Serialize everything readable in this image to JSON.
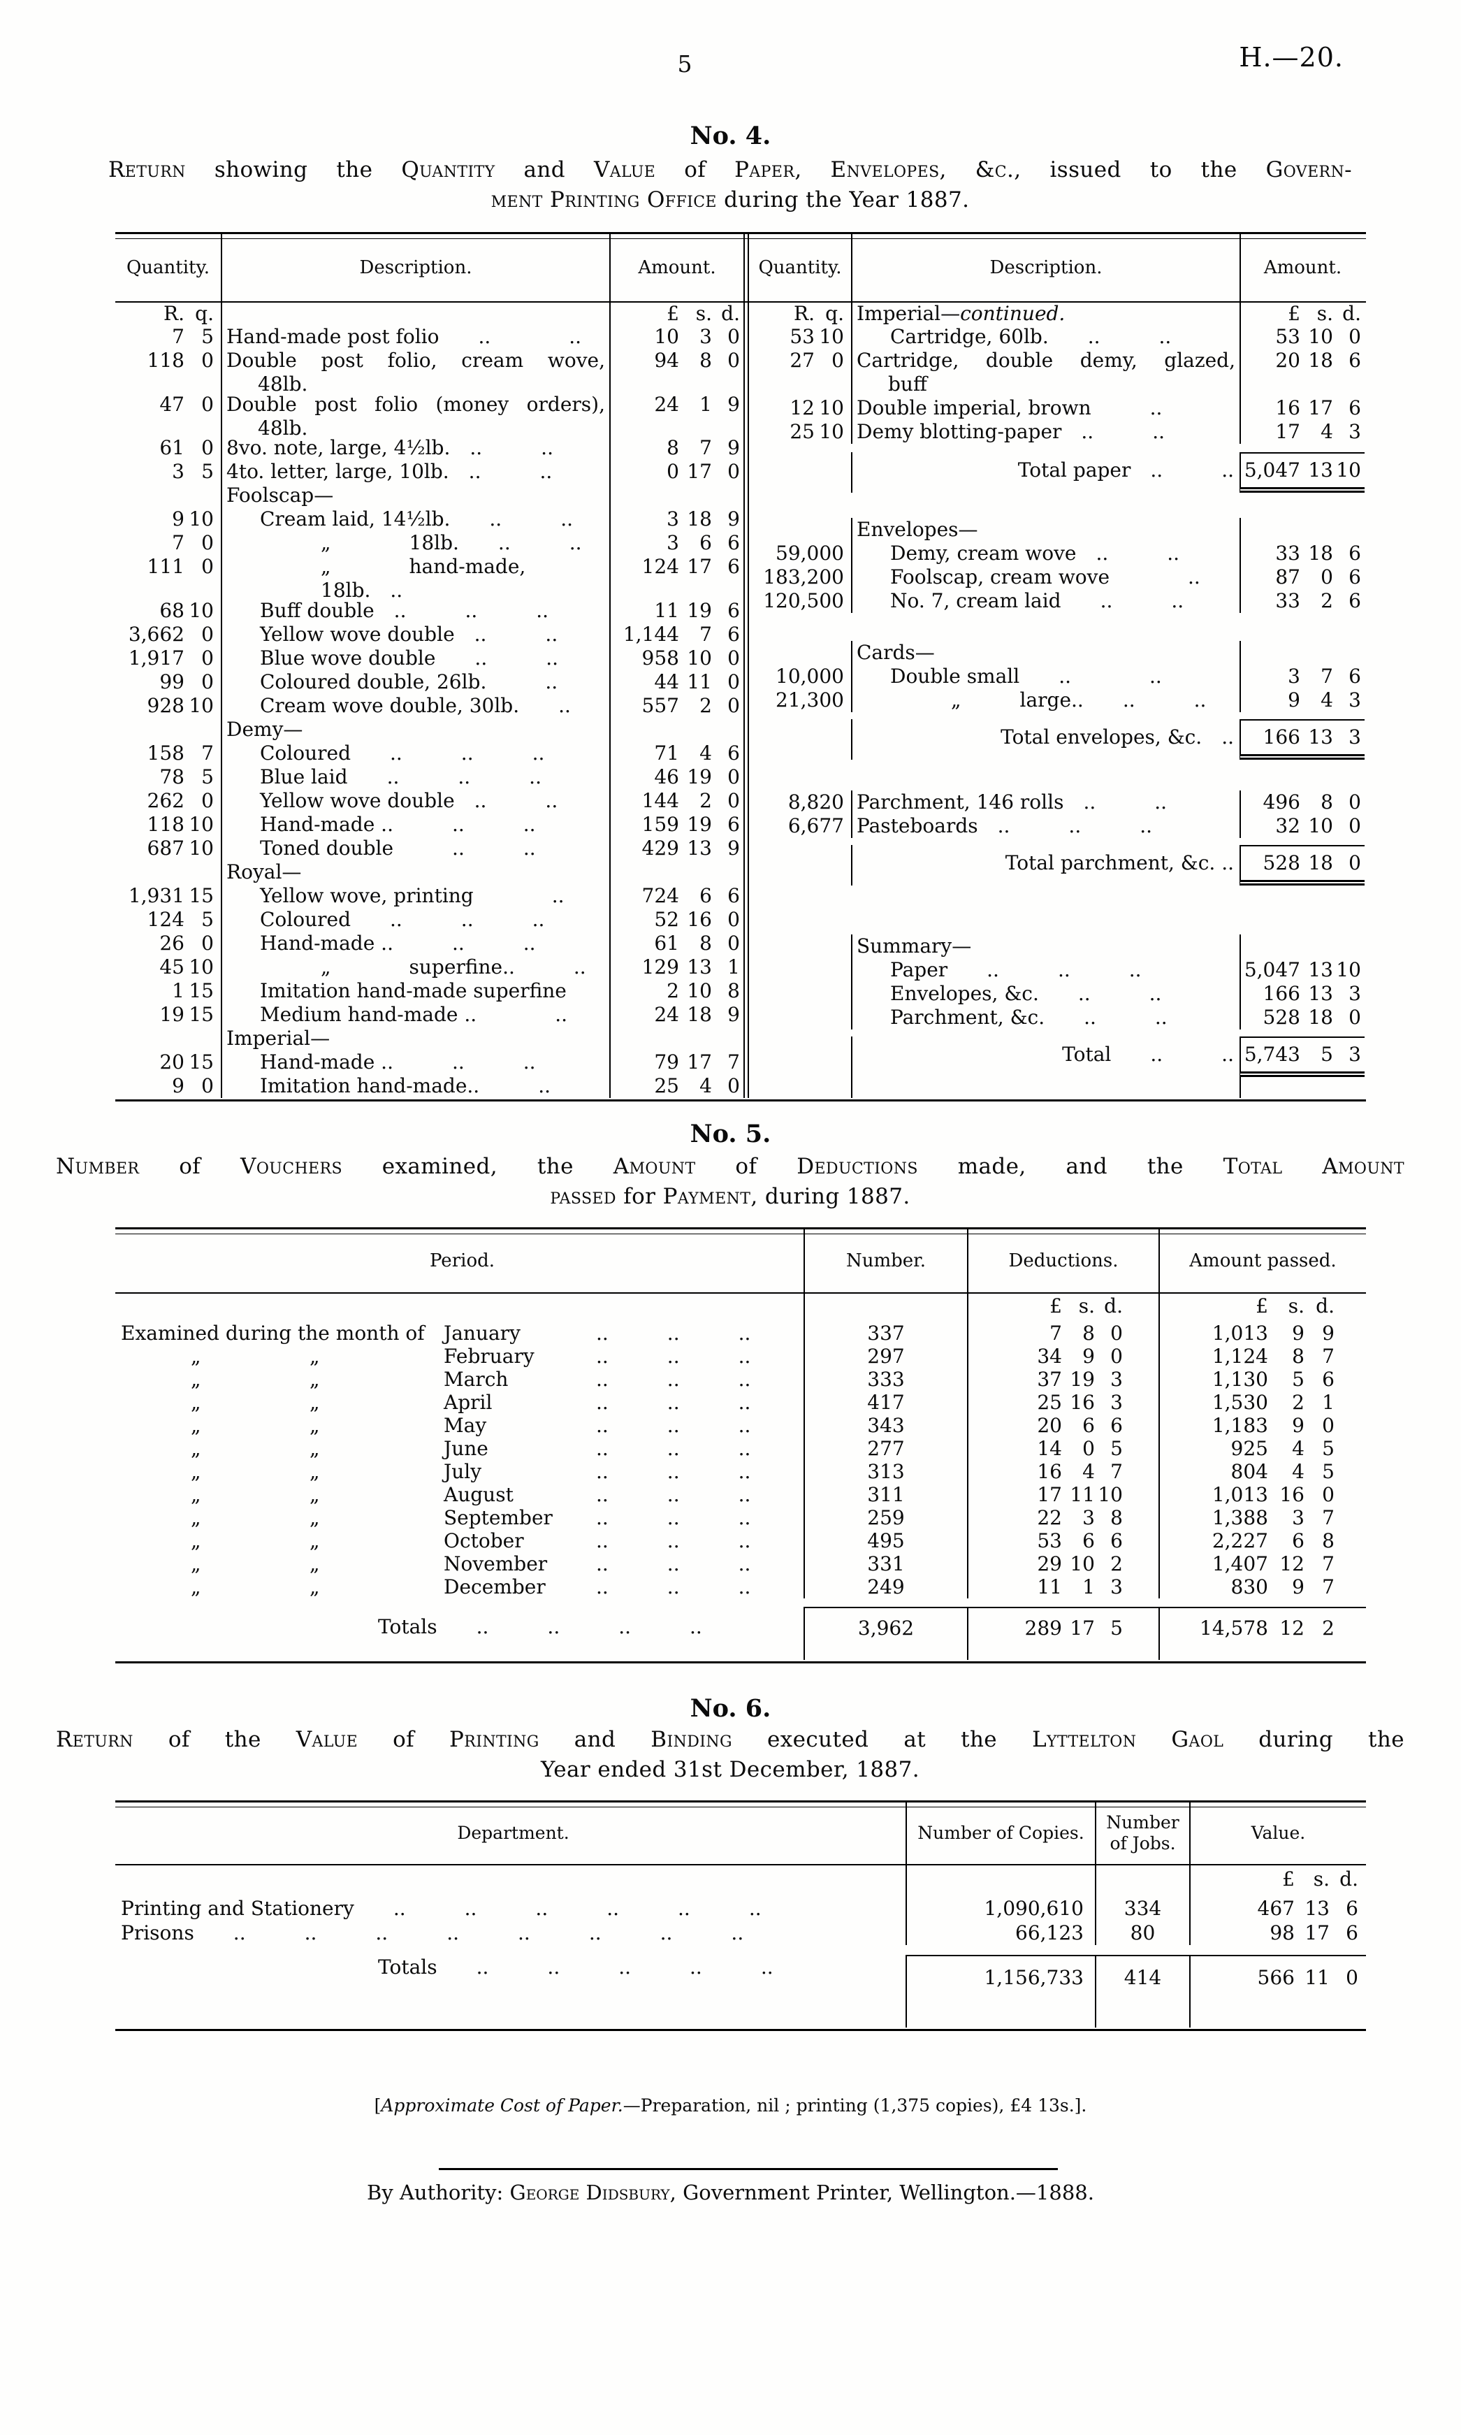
{
  "page": {
    "page_number": "5",
    "reference": "H.—20."
  },
  "no4": {
    "heading": "No. 4.",
    "title": [
      [
        {
          "t": "Return",
          "sc": true
        },
        {
          "t": " showing the "
        },
        {
          "t": "Quantity",
          "sc": true
        },
        {
          "t": " and "
        },
        {
          "t": "Value",
          "sc": true
        },
        {
          "t": " of "
        },
        {
          "t": "Paper, Envelopes, &c.,",
          "sc": true
        },
        {
          "t": " issued to the "
        },
        {
          "t": "Govern-",
          "sc": true
        }
      ],
      [
        {
          "t": "ment Printing Office",
          "sc": true
        },
        {
          "t": " during the Year 1887."
        }
      ]
    ],
    "columns": {
      "quantity": "Quantity.",
      "description": "Description.",
      "amount": "Amount."
    },
    "left": {
      "units": {
        "q": [
          "R.",
          "q."
        ],
        "a": [
          "£",
          "s.",
          "d."
        ]
      },
      "rows": [
        {
          "type": "units"
        },
        {
          "r": "7",
          "q": "5",
          "desc": "Hand-made post folio  ..    ..",
          "amt": [
            "10",
            "3",
            "0"
          ]
        },
        {
          "r": "118",
          "q": "0",
          "desc": "Double post folio, cream wove,",
          "d2": "48lb.",
          "amt": [
            "94",
            "8",
            "0"
          ]
        },
        {
          "r": "47",
          "q": "0",
          "desc": "Double post folio (money orders),",
          "d2": "48lb.",
          "amt": [
            "24",
            "1",
            "9"
          ]
        },
        {
          "r": "61",
          "q": "0",
          "desc": "8vo. note, large, 4½lb. ..   ..",
          "amt": [
            "8",
            "7",
            "9"
          ]
        },
        {
          "r": "3",
          "q": "5",
          "desc": "4to. letter, large, 10lb. ..   ..",
          "amt": [
            "0",
            "17",
            "0"
          ]
        },
        {
          "type": "section",
          "text": "Foolscap—"
        },
        {
          "r": "9",
          "q": "10",
          "ind": 1,
          "desc": "Cream laid, 14½lb.  ..   ..",
          "amt": [
            "3",
            "18",
            "9"
          ]
        },
        {
          "r": "7",
          "q": "0",
          "ind": 2,
          "desc": "„    18lb.  ..   ..",
          "amt": [
            "3",
            "6",
            "6"
          ]
        },
        {
          "r": "111",
          "q": "0",
          "ind": 2,
          "desc": "„    hand-made, 18lb. ..",
          "amt": [
            "124",
            "17",
            "6"
          ]
        },
        {
          "r": "68",
          "q": "10",
          "ind": 1,
          "desc": "Buff double ..   ..   ..",
          "amt": [
            "11",
            "19",
            "6"
          ]
        },
        {
          "r": "3,662",
          "q": "0",
          "ind": 1,
          "desc": "Yellow wove double ..   ..",
          "amt": [
            "1,144",
            "7",
            "6"
          ]
        },
        {
          "r": "1,917",
          "q": "0",
          "ind": 1,
          "desc": "Blue wove double  ..   ..",
          "amt": [
            "958",
            "10",
            "0"
          ]
        },
        {
          "r": "99",
          "q": "0",
          "ind": 1,
          "desc": "Coloured double, 26lb.   ..",
          "amt": [
            "44",
            "11",
            "0"
          ]
        },
        {
          "r": "928",
          "q": "10",
          "ind": 1,
          "desc": "Cream wove double, 30lb.  ..",
          "amt": [
            "557",
            "2",
            "0"
          ]
        },
        {
          "type": "section",
          "text": "Demy—"
        },
        {
          "r": "158",
          "q": "7",
          "ind": 1,
          "desc": "Coloured  ..   ..   ..",
          "amt": [
            "71",
            "4",
            "6"
          ]
        },
        {
          "r": "78",
          "q": "5",
          "ind": 1,
          "desc": "Blue laid  ..   ..   ..",
          "amt": [
            "46",
            "19",
            "0"
          ]
        },
        {
          "r": "262",
          "q": "0",
          "ind": 1,
          "desc": "Yellow wove double ..   ..",
          "amt": [
            "144",
            "2",
            "0"
          ]
        },
        {
          "r": "118",
          "q": "10",
          "ind": 1,
          "desc": "Hand-made ..   ..   ..",
          "amt": [
            "159",
            "19",
            "6"
          ]
        },
        {
          "r": "687",
          "q": "10",
          "ind": 1,
          "desc": "Toned double   ..   ..",
          "amt": [
            "429",
            "13",
            "9"
          ]
        },
        {
          "type": "section",
          "text": "Royal—"
        },
        {
          "r": "1,931",
          "q": "15",
          "ind": 1,
          "desc": "Yellow wove, printing    ..",
          "amt": [
            "724",
            "6",
            "6"
          ]
        },
        {
          "r": "124",
          "q": "5",
          "ind": 1,
          "desc": "Coloured  ..   ..   ..",
          "amt": [
            "52",
            "16",
            "0"
          ]
        },
        {
          "r": "26",
          "q": "0",
          "ind": 1,
          "desc": "Hand-made ..   ..   ..",
          "amt": [
            "61",
            "8",
            "0"
          ]
        },
        {
          "r": "45",
          "q": "10",
          "ind": 2,
          "desc": "„    superfine..   ..",
          "amt": [
            "129",
            "13",
            "1"
          ]
        },
        {
          "r": "1",
          "q": "15",
          "ind": 1,
          "desc": "Imitation hand-made superfine",
          "amt": [
            "2",
            "10",
            "8"
          ]
        },
        {
          "r": "19",
          "q": "15",
          "ind": 1,
          "desc": "Medium hand-made ..    ..",
          "amt": [
            "24",
            "18",
            "9"
          ]
        },
        {
          "type": "section",
          "text": "Imperial—"
        },
        {
          "r": "20",
          "q": "15",
          "ind": 1,
          "desc": "Hand-made ..   ..   ..",
          "amt": [
            "79",
            "17",
            "7"
          ]
        },
        {
          "r": "9",
          "q": "0",
          "ind": 1,
          "desc": "Imitation hand-made..   ..",
          "amt": [
            "25",
            "4",
            "0"
          ]
        }
      ]
    },
    "right": {
      "units": {
        "q": [
          "R.",
          "q."
        ],
        "a": [
          "£",
          "s.",
          "d."
        ],
        "section": {
          "t": "Imperial—",
          "i": "continued."
        }
      },
      "rows": [
        {
          "type": "units"
        },
        {
          "r": "53",
          "q": "10",
          "ind": 1,
          "desc": "Cartridge, 60lb.  ..   ..",
          "amt": [
            "53",
            "10",
            "0"
          ]
        },
        {
          "r": "27",
          "q": "0",
          "desc": "Cartridge, double demy, glazed,",
          "d2": "buff",
          "amt": [
            "20",
            "18",
            "6"
          ]
        },
        {
          "r": "12",
          "q": "10",
          "desc": "Double imperial, brown   ..",
          "amt": [
            "16",
            "17",
            "6"
          ]
        },
        {
          "r": "25",
          "q": "10",
          "desc": "Demy blotting-paper ..   ..",
          "amt": [
            "17",
            "4",
            "3"
          ]
        },
        {
          "type": "total",
          "gt": 12,
          "label": "Total paper ..   ..",
          "amt": [
            "5,047",
            "13",
            "10"
          ]
        },
        {
          "type": "section",
          "gt": 36,
          "text": "Envelopes—"
        },
        {
          "n": "59,000",
          "ind": 1,
          "desc": "Demy, cream wove ..   ..",
          "amt": [
            "33",
            "18",
            "6"
          ]
        },
        {
          "n": "183,200",
          "ind": 1,
          "desc": "Foolscap, cream wove    ..",
          "amt": [
            "87",
            "0",
            "6"
          ]
        },
        {
          "n": "120,500",
          "ind": 1,
          "desc": "No. 7, cream laid  ..   ..",
          "amt": [
            "33",
            "2",
            "6"
          ]
        },
        {
          "type": "section",
          "gt": 40,
          "text": "Cards—"
        },
        {
          "n": "10,000",
          "ind": 1,
          "desc": "Double small  ..    ..",
          "amt": [
            "3",
            "7",
            "6"
          ]
        },
        {
          "n": "21,300",
          "ind": 2,
          "desc": "„   large..  ..   ..",
          "amt": [
            "9",
            "4",
            "3"
          ]
        },
        {
          "type": "total",
          "gt": 10,
          "label": "Total envelopes, &c. ..",
          "amt": [
            "166",
            "13",
            "3"
          ]
        },
        {
          "n": "8,820",
          "gt": 44,
          "desc": "Parchment, 146 rolls ..   ..",
          "amt": [
            "496",
            "8",
            "0"
          ]
        },
        {
          "n": "6,677",
          "desc": "Pasteboards ..   ..   ..",
          "amt": [
            "32",
            "10",
            "0"
          ]
        },
        {
          "type": "total",
          "gt": 10,
          "label": "Total parchment, &c. ..",
          "amt": [
            "528",
            "18",
            "0"
          ]
        },
        {
          "type": "section",
          "gt": 70,
          "text": "Summary—"
        },
        {
          "ind": 1,
          "desc": "Paper  ..   ..   ..",
          "amt": [
            "5,047",
            "13",
            "10"
          ]
        },
        {
          "ind": 1,
          "desc": "Envelopes, &c.  ..   ..",
          "amt": [
            "166",
            "13",
            "3"
          ]
        },
        {
          "ind": 1,
          "desc": "Parchment, &c.  ..   ..",
          "amt": [
            "528",
            "18",
            "0"
          ]
        },
        {
          "type": "total",
          "gt": 10,
          "label": "Total  ..   ..",
          "amt": [
            "5,743",
            "5",
            "3"
          ]
        }
      ]
    }
  },
  "no5": {
    "heading": "No. 5.",
    "title": [
      [
        {
          "t": "Number",
          "sc": true
        },
        {
          "t": " of "
        },
        {
          "t": "Vouchers",
          "sc": true
        },
        {
          "t": " examined, the "
        },
        {
          "t": "Amount",
          "sc": true
        },
        {
          "t": " of "
        },
        {
          "t": "Deductions",
          "sc": true
        },
        {
          "t": " made, and the "
        },
        {
          "t": "Total Amount",
          "sc": true
        }
      ],
      [
        {
          "t": "passed",
          "sc": true
        },
        {
          "t": " for "
        },
        {
          "t": "Payment",
          "sc": true
        },
        {
          "t": ", during 1887."
        }
      ]
    ],
    "columns": {
      "period": "Period.",
      "number": "Number.",
      "deductions": "Deductions.",
      "amount_passed": "Amount passed."
    },
    "units": {
      "a": [
        "£",
        "s.",
        "d."
      ]
    },
    "lead": "Examined during the month of",
    "ditto": "„",
    "dots": "..   ..   ..",
    "rows": [
      {
        "month": "January",
        "num": "337",
        "ded": [
          "7",
          "8",
          "0"
        ],
        "amt": [
          "1,013",
          "9",
          "9"
        ]
      },
      {
        "month": "February",
        "num": "297",
        "ded": [
          "34",
          "9",
          "0"
        ],
        "amt": [
          "1,124",
          "8",
          "7"
        ]
      },
      {
        "month": "March",
        "num": "333",
        "ded": [
          "37",
          "19",
          "3"
        ],
        "amt": [
          "1,130",
          "5",
          "6"
        ]
      },
      {
        "month": "April",
        "num": "417",
        "ded": [
          "25",
          "16",
          "3"
        ],
        "amt": [
          "1,530",
          "2",
          "1"
        ]
      },
      {
        "month": "May",
        "num": "343",
        "ded": [
          "20",
          "6",
          "6"
        ],
        "amt": [
          "1,183",
          "9",
          "0"
        ]
      },
      {
        "month": "June",
        "num": "277",
        "ded": [
          "14",
          "0",
          "5"
        ],
        "amt": [
          "925",
          "4",
          "5"
        ]
      },
      {
        "month": "July",
        "num": "313",
        "ded": [
          "16",
          "4",
          "7"
        ],
        "amt": [
          "804",
          "4",
          "5"
        ]
      },
      {
        "month": "August",
        "num": "311",
        "ded": [
          "17",
          "11",
          "10"
        ],
        "amt": [
          "1,013",
          "16",
          "0"
        ]
      },
      {
        "month": "September",
        "num": "259",
        "ded": [
          "22",
          "3",
          "8"
        ],
        "amt": [
          "1,388",
          "3",
          "7"
        ]
      },
      {
        "month": "October",
        "num": "495",
        "ded": [
          "53",
          "6",
          "6"
        ],
        "amt": [
          "2,227",
          "6",
          "8"
        ]
      },
      {
        "month": "November",
        "num": "331",
        "ded": [
          "29",
          "10",
          "2"
        ],
        "amt": [
          "1,407",
          "12",
          "7"
        ]
      },
      {
        "month": "December",
        "num": "249",
        "ded": [
          "11",
          "1",
          "3"
        ],
        "amt": [
          "830",
          "9",
          "7"
        ]
      }
    ],
    "totals": {
      "label": "Totals  ..   ..   ..   ..",
      "num": "3,962",
      "ded": [
        "289",
        "17",
        "5"
      ],
      "amt": [
        "14,578",
        "12",
        "2"
      ]
    }
  },
  "no6": {
    "heading": "No. 6.",
    "title": [
      [
        {
          "t": "Return",
          "sc": true
        },
        {
          "t": " of the "
        },
        {
          "t": "Value",
          "sc": true
        },
        {
          "t": " of "
        },
        {
          "t": "Printing",
          "sc": true
        },
        {
          "t": " and "
        },
        {
          "t": "Binding",
          "sc": true
        },
        {
          "t": " executed at the "
        },
        {
          "t": "Lyttelton Gaol",
          "sc": true
        },
        {
          "t": " during the"
        }
      ],
      [
        {
          "t": "Year ended 31st December, 1887."
        }
      ]
    ],
    "columns": {
      "department": "Department.",
      "copies": "Number of Copies.",
      "jobs": "Number of Jobs.",
      "value": "Value."
    },
    "units": {
      "a": [
        "£",
        "s.",
        "d."
      ]
    },
    "rows": [
      {
        "dept": "Printing and Stationery  ..   ..   ..   ..   ..   ..",
        "copies": "1,090,610",
        "jobs": "334",
        "value": [
          "467",
          "13",
          "6"
        ]
      },
      {
        "dept": "Prisons  ..   ..   ..   ..   ..   ..   ..   ..",
        "copies": "66,123",
        "jobs": "80",
        "value": [
          "98",
          "17",
          "6"
        ]
      }
    ],
    "totals": {
      "label": "Totals  ..   ..   ..   ..   ..",
      "copies": "1,156,733",
      "jobs": "414",
      "value": [
        "566",
        "11",
        "0"
      ]
    }
  },
  "footer": {
    "note": [
      {
        "t": "["
      },
      {
        "t": "Approximate Cost of Paper.",
        "i": true
      },
      {
        "t": "—Preparation, nil ; printing (1,375 copies), £4 13s.]."
      }
    ],
    "byline": [
      {
        "t": "By Authority: "
      },
      {
        "t": "George Didsbury",
        "sc": true
      },
      {
        "t": ", Government Printer, Wellington.—1888."
      }
    ]
  }
}
